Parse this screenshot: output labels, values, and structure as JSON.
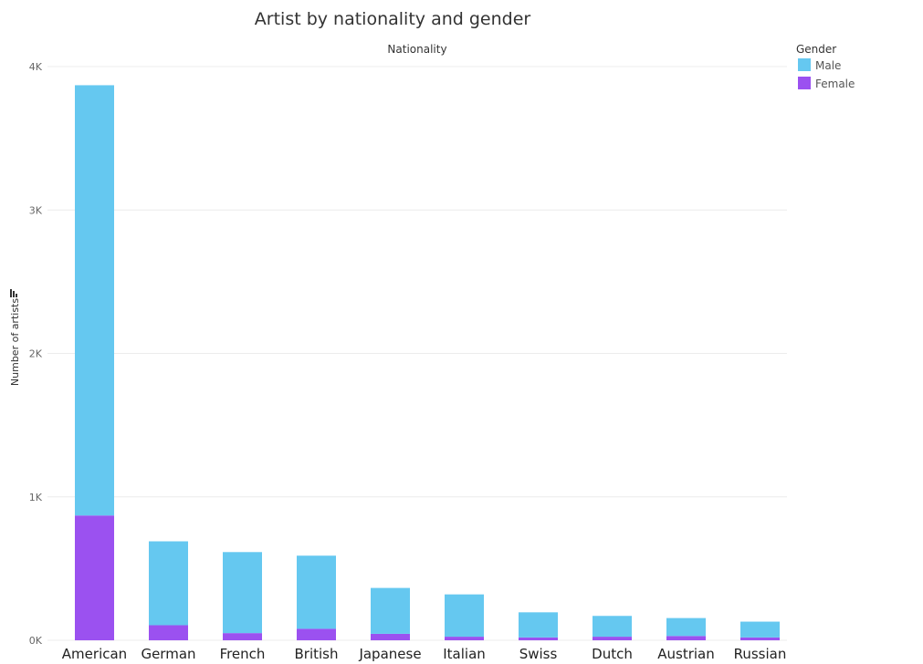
{
  "chart_data": {
    "type": "bar",
    "stacked": true,
    "title": "Artist by nationality and gender",
    "column_header": "Nationality",
    "ylabel": "Number of artists",
    "xlabel": "",
    "categories": [
      "American",
      "German",
      "French",
      "British",
      "Japanese",
      "Italian",
      "Swiss",
      "Dutch",
      "Austrian",
      "Russian"
    ],
    "series": [
      {
        "name": "Female",
        "color": "#9b51f0",
        "values": [
          870,
          105,
          50,
          80,
          45,
          25,
          20,
          25,
          30,
          20
        ]
      },
      {
        "name": "Male",
        "color": "#65c8f0",
        "values": [
          3000,
          585,
          565,
          510,
          320,
          295,
          175,
          145,
          125,
          110
        ]
      }
    ],
    "ylim": [
      0,
      4000
    ],
    "yticks": [
      0,
      1000,
      2000,
      3000,
      4000
    ],
    "ytick_labels": [
      "0K",
      "1K",
      "2K",
      "3K",
      "4K"
    ],
    "grid": true,
    "legend": {
      "title": "Gender",
      "position": "top-right",
      "items": [
        {
          "label": "Male",
          "color": "#65c8f0"
        },
        {
          "label": "Female",
          "color": "#9b51f0"
        }
      ]
    }
  }
}
